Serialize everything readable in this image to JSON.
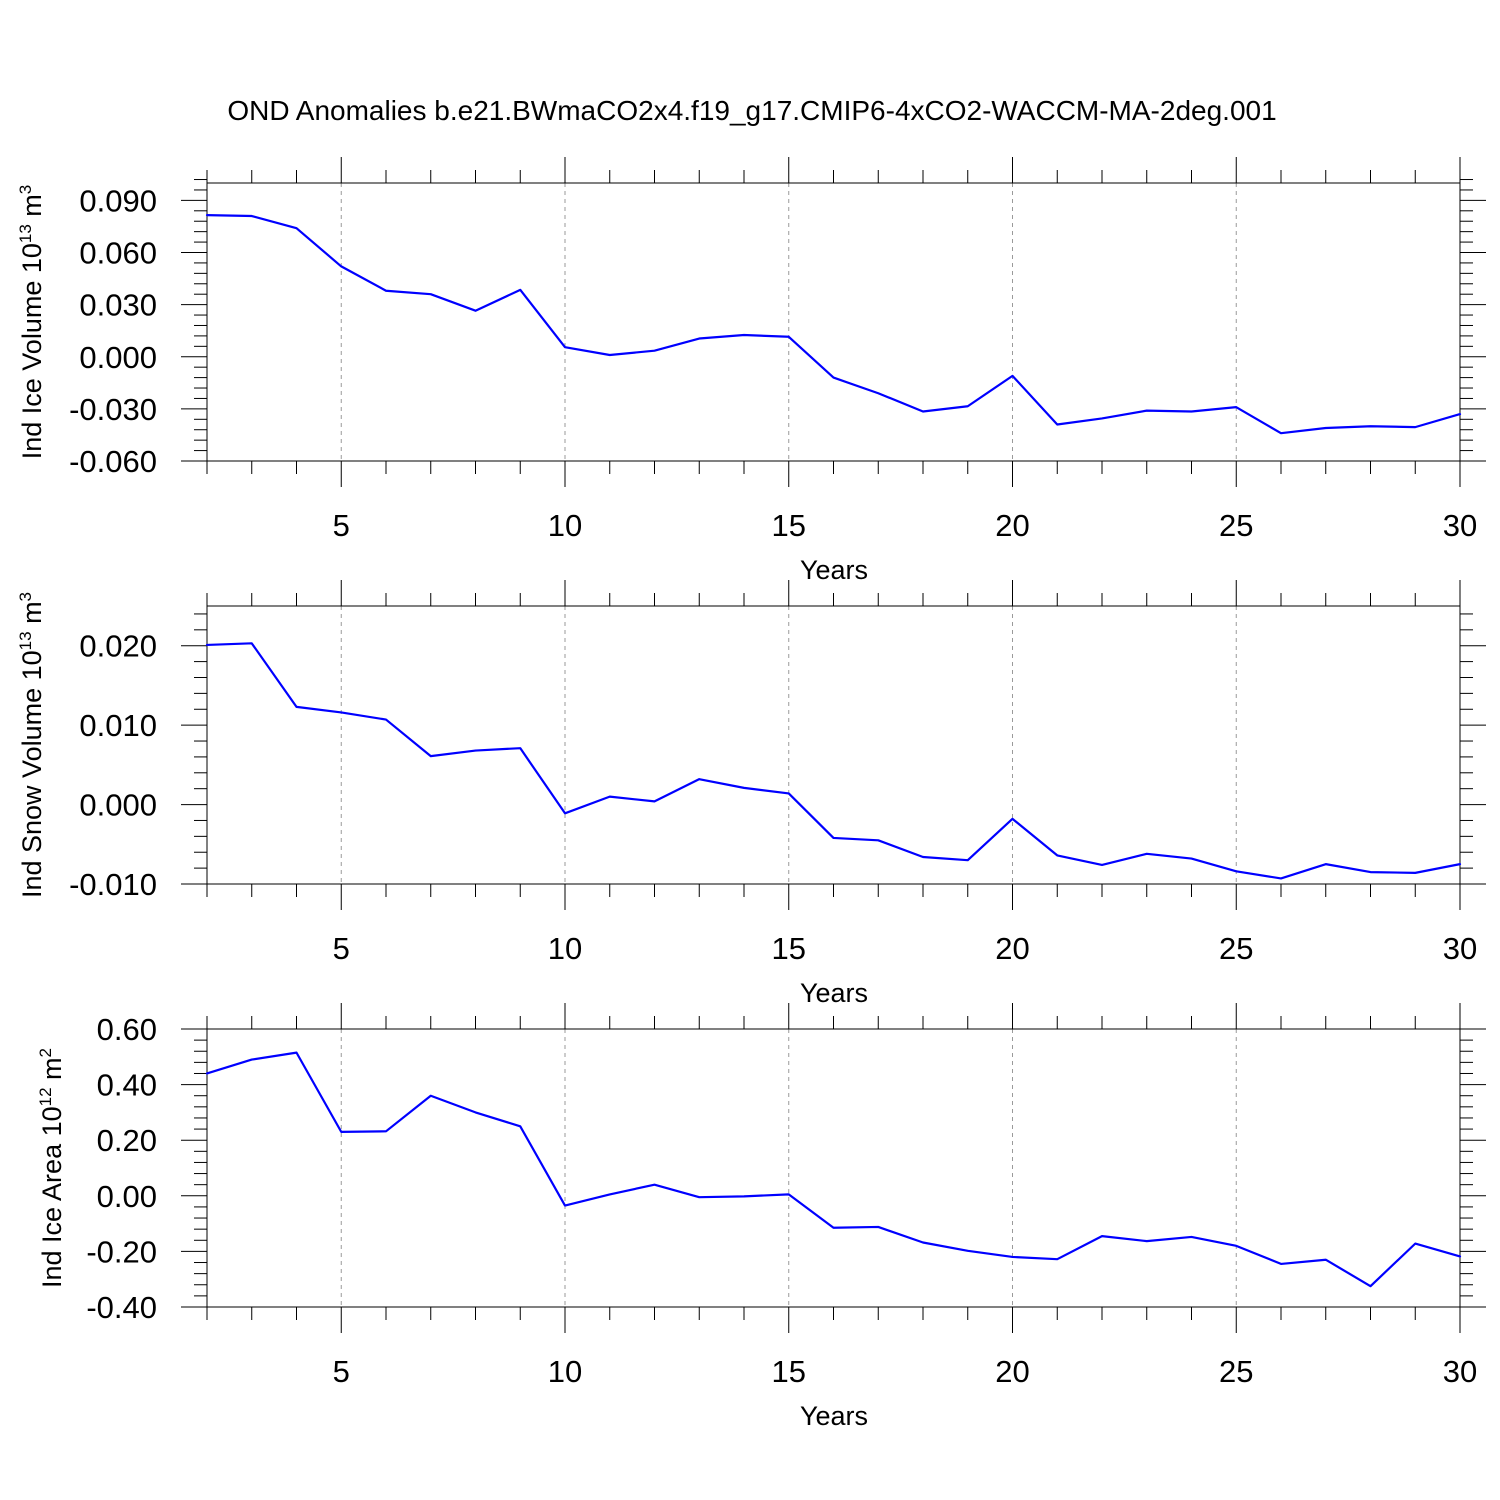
{
  "figure_title": "OND Anomalies b.e21.BWmaCO2x4.f19_g17.CMIP6-4xCO2-WACCM-MA-2deg.001",
  "line_color": "#0000ff",
  "chart_data": [
    {
      "id": "ind-ice-volume",
      "type": "line",
      "title": "",
      "xlabel": "Years",
      "ylabel_main": "Ind Ice Volume 10",
      "ylabel_exp": "13",
      "ylabel_unit": " m",
      "ylabel_unit_exp": "3",
      "xlim": [
        2,
        30
      ],
      "ylim": [
        -0.06,
        0.1
      ],
      "x_ticks": [
        5,
        10,
        15,
        20,
        25,
        30
      ],
      "x_tick_labels": [
        "5",
        "10",
        "15",
        "20",
        "25",
        "30"
      ],
      "y_ticks": [
        -0.06,
        -0.03,
        0,
        0.03,
        0.06,
        0.09
      ],
      "y_tick_labels": [
        "-0.060",
        "-0.030",
        "0.000",
        "0.030",
        "0.060",
        "0.090"
      ],
      "grid": "vertical dashed at major x ticks",
      "series": [
        {
          "name": "Ind Ice Volume",
          "x": [
            2,
            3,
            4,
            5,
            6,
            7,
            8,
            9,
            10,
            11,
            12,
            13,
            14,
            15,
            16,
            17,
            18,
            19,
            20,
            21,
            22,
            23,
            24,
            25,
            26,
            27,
            28,
            29,
            30
          ],
          "values": [
            0.0815,
            0.081,
            0.074,
            0.052,
            0.038,
            0.036,
            0.0265,
            0.0385,
            0.0055,
            0.001,
            0.0035,
            0.0105,
            0.0125,
            0.0115,
            -0.012,
            -0.021,
            -0.0315,
            -0.0285,
            -0.011,
            -0.039,
            -0.0355,
            -0.031,
            -0.0315,
            -0.029,
            -0.044,
            -0.041,
            -0.04,
            -0.0405,
            -0.033
          ]
        }
      ]
    },
    {
      "id": "ind-snow-volume",
      "type": "line",
      "title": "",
      "xlabel": "Years",
      "ylabel_main": "Ind Snow Volume 10",
      "ylabel_exp": "13",
      "ylabel_unit": " m",
      "ylabel_unit_exp": "3",
      "xlim": [
        2,
        30
      ],
      "ylim": [
        -0.01,
        0.025
      ],
      "x_ticks": [
        5,
        10,
        15,
        20,
        25,
        30
      ],
      "x_tick_labels": [
        "5",
        "10",
        "15",
        "20",
        "25",
        "30"
      ],
      "y_ticks": [
        -0.01,
        0,
        0.01,
        0.02
      ],
      "y_tick_labels": [
        "-0.010",
        "0.000",
        "0.010",
        "0.020"
      ],
      "grid": "vertical dashed at major x ticks",
      "series": [
        {
          "name": "Ind Snow Volume",
          "x": [
            2,
            3,
            4,
            5,
            6,
            7,
            8,
            9,
            10,
            11,
            12,
            13,
            14,
            15,
            16,
            17,
            18,
            19,
            20,
            21,
            22,
            23,
            24,
            25,
            26,
            27,
            28,
            29,
            30
          ],
          "values": [
            0.0201,
            0.0203,
            0.0123,
            0.0116,
            0.0107,
            0.0061,
            0.0068,
            0.0071,
            -0.0011,
            0.001,
            0.0004,
            0.0032,
            0.0021,
            0.0014,
            -0.0042,
            -0.0045,
            -0.0066,
            -0.007,
            -0.0018,
            -0.0064,
            -0.0076,
            -0.0062,
            -0.0068,
            -0.0084,
            -0.0093,
            -0.0075,
            -0.0085,
            -0.0086,
            -0.0075
          ]
        }
      ]
    },
    {
      "id": "ind-ice-area",
      "type": "line",
      "title": "",
      "xlabel": "Years",
      "ylabel_main": "Ind Ice Area 10",
      "ylabel_exp": "12",
      "ylabel_unit": " m",
      "ylabel_unit_exp": "2",
      "xlim": [
        2,
        30
      ],
      "ylim": [
        -0.4,
        0.6
      ],
      "x_ticks": [
        5,
        10,
        15,
        20,
        25,
        30
      ],
      "x_tick_labels": [
        "5",
        "10",
        "15",
        "20",
        "25",
        "30"
      ],
      "y_ticks": [
        -0.4,
        -0.2,
        0,
        0.2,
        0.4,
        0.6
      ],
      "y_tick_labels": [
        "-0.40",
        "-0.20",
        "0.00",
        "0.20",
        "0.40",
        "0.60"
      ],
      "grid": "vertical dashed at major x ticks",
      "series": [
        {
          "name": "Ind Ice Area",
          "x": [
            2,
            3,
            4,
            5,
            6,
            7,
            8,
            9,
            10,
            11,
            12,
            13,
            14,
            15,
            16,
            17,
            18,
            19,
            20,
            21,
            22,
            23,
            24,
            25,
            26,
            27,
            28,
            29,
            30
          ],
          "values": [
            0.44,
            0.49,
            0.515,
            0.23,
            0.232,
            0.36,
            0.3,
            0.25,
            -0.035,
            0.005,
            0.04,
            -0.005,
            -0.002,
            0.005,
            -0.115,
            -0.112,
            -0.168,
            -0.198,
            -0.22,
            -0.228,
            -0.145,
            -0.163,
            -0.148,
            -0.18,
            -0.245,
            -0.23,
            -0.325,
            -0.172,
            -0.218
          ]
        }
      ]
    }
  ]
}
